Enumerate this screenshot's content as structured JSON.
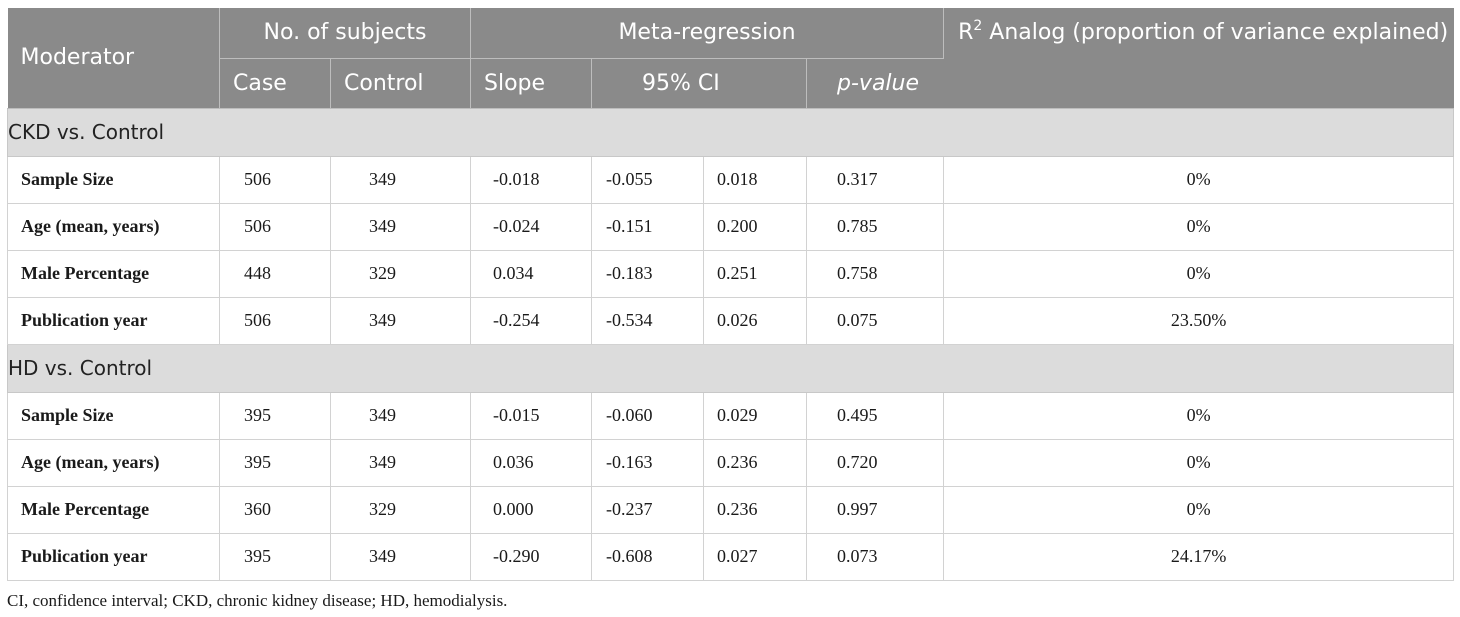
{
  "header": {
    "moderator": "Moderator",
    "subjects": "No. of subjects",
    "meta_regression": "Meta-regression",
    "r2_prefix": "R",
    "r2_superscript": "2",
    "r2_suffix": " Analog (proportion of variance explained)",
    "case": "Case",
    "control": "Control",
    "slope": "Slope",
    "ci": "95% CI",
    "pvalue": "p-value"
  },
  "groups": [
    {
      "label": "CKD vs. Control",
      "rows": [
        {
          "moderator": "Sample Size",
          "case": "506",
          "control": "349",
          "slope": "-0.018",
          "ci_low": "-0.055",
          "ci_high": "0.018",
          "p": "0.317",
          "r2": "0%"
        },
        {
          "moderator": "Age (mean, years)",
          "case": "506",
          "control": "349",
          "slope": "-0.024",
          "ci_low": "-0.151",
          "ci_high": "0.200",
          "p": "0.785",
          "r2": "0%"
        },
        {
          "moderator": "Male Percentage",
          "case": "448",
          "control": "329",
          "slope": "0.034",
          "ci_low": "-0.183",
          "ci_high": "0.251",
          "p": "0.758",
          "r2": "0%"
        },
        {
          "moderator": "Publication year",
          "case": "506",
          "control": "349",
          "slope": "-0.254",
          "ci_low": "-0.534",
          "ci_high": "0.026",
          "p": "0.075",
          "r2": "23.50%"
        }
      ]
    },
    {
      "label": "HD vs. Control",
      "rows": [
        {
          "moderator": "Sample Size",
          "case": "395",
          "control": "349",
          "slope": "-0.015",
          "ci_low": "-0.060",
          "ci_high": "0.029",
          "p": "0.495",
          "r2": "0%"
        },
        {
          "moderator": "Age (mean, years)",
          "case": "395",
          "control": "349",
          "slope": "0.036",
          "ci_low": "-0.163",
          "ci_high": "0.236",
          "p": "0.720",
          "r2": "0%"
        },
        {
          "moderator": "Male Percentage",
          "case": "360",
          "control": "329",
          "slope": "0.000",
          "ci_low": "-0.237",
          "ci_high": "0.236",
          "p": "0.997",
          "r2": "0%"
        },
        {
          "moderator": "Publication year",
          "case": "395",
          "control": "349",
          "slope": "-0.290",
          "ci_low": "-0.608",
          "ci_high": "0.027",
          "p": "0.073",
          "r2": "24.17%"
        }
      ]
    }
  ],
  "footnote": "CI, confidence interval; CKD, chronic kidney disease; HD, hemodialysis.",
  "colors": {
    "header_bg": "#8a8a8a",
    "header_text": "#ffffff",
    "group_bg": "#dcdcdc",
    "grid": "#d2d2d2"
  }
}
